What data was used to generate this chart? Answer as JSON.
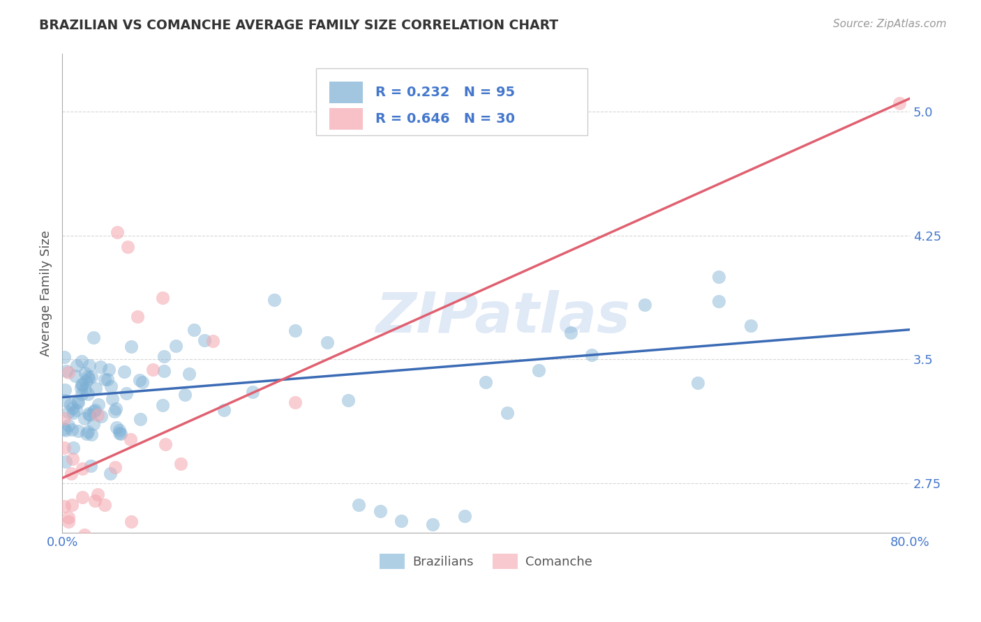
{
  "title": "BRAZILIAN VS COMANCHE AVERAGE FAMILY SIZE CORRELATION CHART",
  "source": "Source: ZipAtlas.com",
  "ylabel": "Average Family Size",
  "xlim": [
    0.0,
    0.8
  ],
  "ylim": [
    2.45,
    5.35
  ],
  "yticks": [
    2.75,
    3.5,
    4.25,
    5.0
  ],
  "xticks": [
    0.0,
    0.2,
    0.4,
    0.6,
    0.8
  ],
  "xticklabels": [
    "0.0%",
    "",
    "",
    "",
    "80.0%"
  ],
  "legend_R_blue": "R = 0.232",
  "legend_N_blue": "N = 95",
  "legend_R_pink": "R = 0.646",
  "legend_N_pink": "N = 30",
  "legend_label_blue": "Brazilians",
  "legend_label_pink": "Comanche",
  "blue_color": "#7BAFD4",
  "pink_color": "#F4A7B0",
  "blue_line_color": "#3B6BB5",
  "pink_line_color": "#E06070",
  "watermark": "ZIPatlas",
  "blue_trendline_x": [
    0.0,
    0.8
  ],
  "blue_trendline_y": [
    3.27,
    3.68
  ],
  "pink_trendline_x": [
    0.0,
    0.8
  ],
  "pink_trendline_y": [
    2.78,
    5.08
  ],
  "background_color": "#FFFFFF",
  "grid_color": "#CCCCCC",
  "title_color": "#333333",
  "tick_label_color": "#4477CC"
}
